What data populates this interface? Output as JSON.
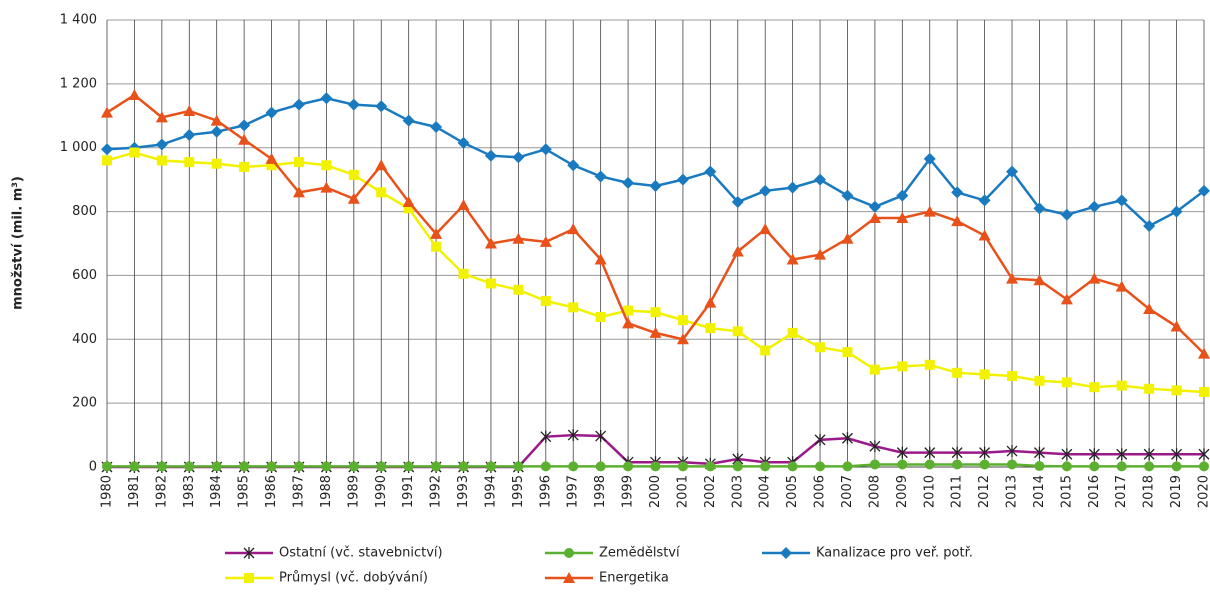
{
  "chart_data": {
    "type": "line",
    "y_label": "množství (mil. m³)",
    "categories": [
      "1980",
      "1981",
      "1982",
      "1983",
      "1984",
      "1985",
      "1986",
      "1987",
      "1988",
      "1989",
      "1990",
      "1991",
      "1992",
      "1993",
      "1994",
      "1995",
      "1996",
      "1997",
      "1998",
      "1999",
      "2000",
      "2001",
      "2002",
      "2003",
      "2004",
      "2005",
      "2006",
      "2007",
      "2008",
      "2009",
      "2010",
      "2011",
      "2012",
      "2013",
      "2014",
      "2015",
      "2016",
      "2017",
      "2018",
      "2019",
      "2020"
    ],
    "ylim": [
      0,
      1400
    ],
    "yticks": [
      0,
      200,
      400,
      600,
      800,
      {
        "value": 1000,
        "label": "1 000"
      },
      {
        "value": 1200,
        "label": "1 200"
      },
      {
        "value": 1400,
        "label": "1 400"
      }
    ],
    "grid": true,
    "series": [
      {
        "name": "Ostatní (vč. stavebnictví)",
        "color": "#9b1a8a",
        "marker": "star",
        "values": [
          0,
          0,
          0,
          0,
          0,
          0,
          0,
          0,
          0,
          0,
          0,
          0,
          0,
          0,
          0,
          0,
          95,
          100,
          97,
          15,
          15,
          15,
          10,
          25,
          15,
          15,
          85,
          90,
          65,
          45,
          45,
          45,
          45,
          50,
          45,
          40,
          40,
          40,
          40,
          40,
          40
        ]
      },
      {
        "name": "Zemědělství",
        "color": "#5cb030",
        "marker": "circle",
        "values": [
          2,
          2,
          2,
          2,
          2,
          2,
          2,
          2,
          2,
          2,
          2,
          2,
          2,
          2,
          2,
          2,
          2,
          2,
          2,
          2,
          2,
          2,
          2,
          2,
          2,
          2,
          2,
          2,
          8,
          8,
          8,
          8,
          8,
          8,
          3,
          2,
          2,
          2,
          2,
          2,
          2
        ]
      },
      {
        "name": "Kanalizace pro veř. potř.",
        "color": "#1a7abf",
        "marker": "diamond",
        "values": [
          995,
          1000,
          1010,
          1040,
          1050,
          1070,
          1110,
          1135,
          1155,
          1135,
          1130,
          1085,
          1065,
          1015,
          975,
          970,
          995,
          945,
          910,
          890,
          880,
          900,
          925,
          830,
          865,
          875,
          900,
          850,
          815,
          850,
          965,
          860,
          835,
          925,
          810,
          790,
          815,
          835,
          755,
          800,
          865
        ]
      },
      {
        "name": "Průmysl (vč. dobývání)",
        "color": "#f2f200",
        "marker": "square",
        "values": [
          960,
          985,
          960,
          955,
          950,
          940,
          945,
          955,
          945,
          915,
          860,
          810,
          690,
          605,
          575,
          555,
          520,
          500,
          470,
          490,
          485,
          460,
          435,
          425,
          365,
          420,
          375,
          360,
          305,
          315,
          320,
          295,
          290,
          285,
          270,
          265,
          250,
          255,
          245,
          240,
          235
        ]
      },
      {
        "name": "Energetika",
        "color": "#e8521a",
        "marker": "triangle",
        "values": [
          1110,
          1165,
          1095,
          1115,
          1085,
          1025,
          965,
          860,
          875,
          840,
          945,
          830,
          730,
          820,
          700,
          715,
          705,
          745,
          650,
          450,
          420,
          400,
          515,
          675,
          745,
          650,
          665,
          715,
          780,
          780,
          800,
          770,
          725,
          590,
          585,
          525,
          590,
          565,
          495,
          440,
          355
        ]
      }
    ]
  }
}
